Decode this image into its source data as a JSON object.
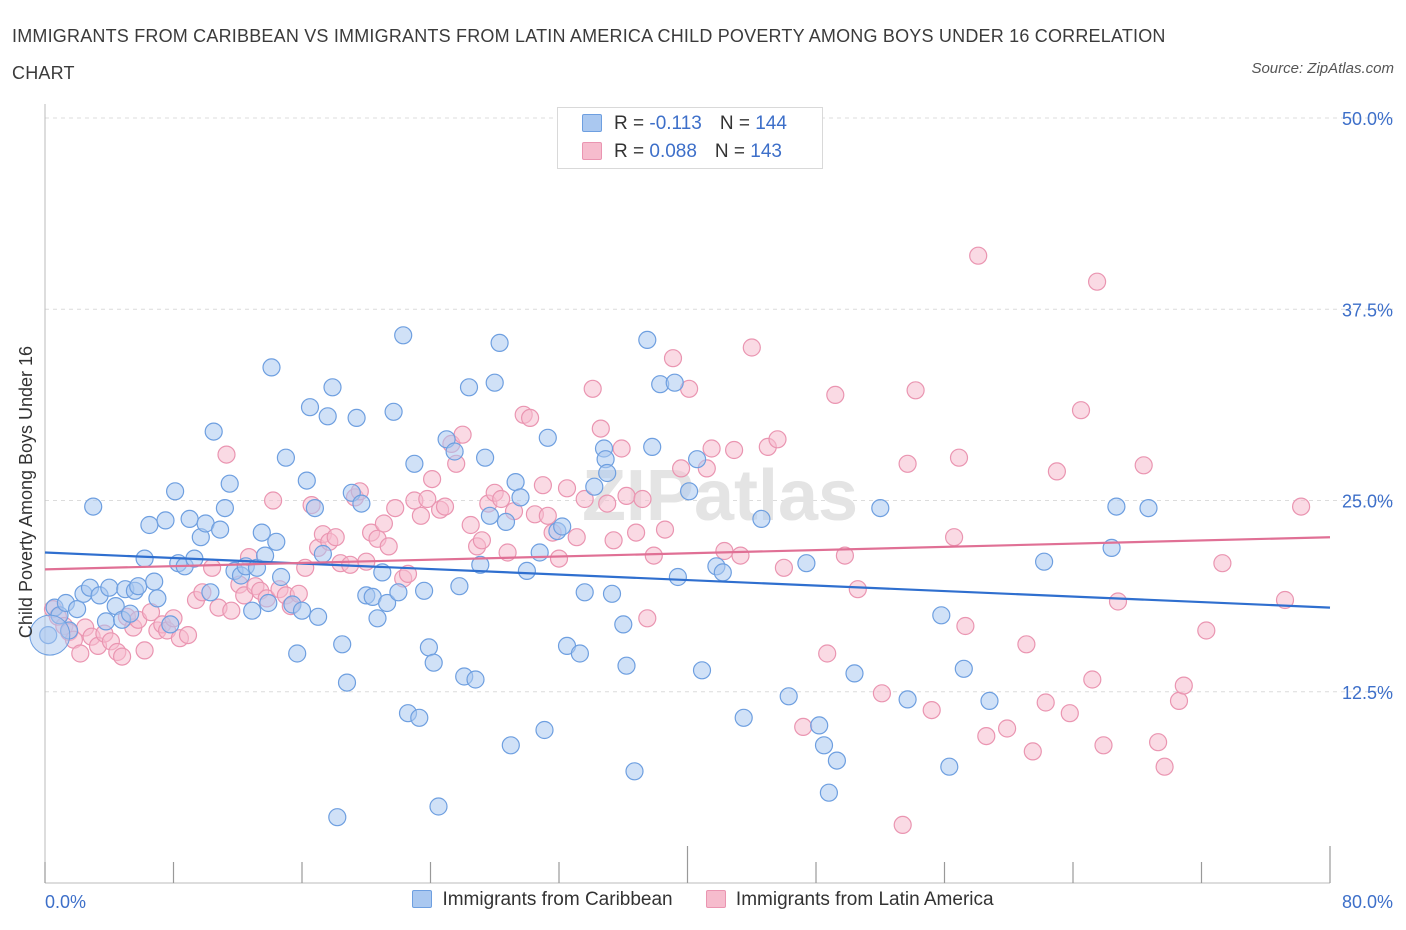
{
  "title": "IMMIGRANTS FROM CARIBBEAN VS IMMIGRANTS FROM LATIN AMERICA CHILD POVERTY AMONG BOYS UNDER 16 CORRELATION CHART",
  "source": "Source: ZipAtlas.com",
  "watermark": "ZIPatlas",
  "colors": {
    "blue_fill": "#aac8f0",
    "blue_stroke": "#6e9fe0",
    "blue_line": "#2f6fcf",
    "pink_fill": "#f6bccd",
    "pink_stroke": "#ea95b1",
    "pink_line": "#e07095",
    "tick_text": "#3d6fc9",
    "grid": "#dcdcdc"
  },
  "legend": {
    "rows": [
      {
        "r_label": "R = ",
        "r_value": "-0.113",
        "n_label": "N = ",
        "n_value": "144"
      },
      {
        "r_label": "R = ",
        "r_value": "0.088",
        "n_label": "N = ",
        "n_value": "143"
      }
    ]
  },
  "chart_data": {
    "type": "scatter",
    "title": "IMMIGRANTS FROM CARIBBEAN VS IMMIGRANTS FROM LATIN AMERICA CHILD POVERTY AMONG BOYS UNDER 16 CORRELATION CHART",
    "xlabel": "",
    "ylabel": "Child Poverty Among Boys Under 16",
    "xlim": [
      0,
      80
    ],
    "ylim": [
      0,
      50
    ],
    "x_tick_labels": [
      "0.0%",
      "80.0%"
    ],
    "y_ticks": [
      12.5,
      25.0,
      37.5,
      50.0
    ],
    "y_tick_labels": [
      "12.5%",
      "25.0%",
      "37.5%",
      "50.0%"
    ],
    "grid": true,
    "legend_placement": "top-center",
    "series": [
      {
        "name": "Immigrants from Caribbean",
        "color": "#aac8f0",
        "trend": {
          "x": [
            0,
            80
          ],
          "y": [
            21.6,
            18.0
          ]
        },
        "points": [
          [
            0.2,
            16.2
          ],
          [
            0.6,
            18.0
          ],
          [
            0.9,
            17.5
          ],
          [
            1.3,
            18.3
          ],
          [
            1.5,
            16.5
          ],
          [
            2.0,
            17.9
          ],
          [
            2.4,
            18.9
          ],
          [
            2.8,
            19.3
          ],
          [
            3.0,
            24.6
          ],
          [
            3.4,
            18.8
          ],
          [
            3.8,
            17.1
          ],
          [
            4.0,
            19.3
          ],
          [
            4.4,
            18.1
          ],
          [
            4.8,
            17.2
          ],
          [
            5.0,
            19.2
          ],
          [
            5.3,
            17.6
          ],
          [
            5.6,
            19.1
          ],
          [
            5.8,
            19.4
          ],
          [
            6.2,
            21.2
          ],
          [
            6.5,
            23.4
          ],
          [
            6.8,
            19.7
          ],
          [
            7.0,
            18.6
          ],
          [
            7.5,
            23.7
          ],
          [
            7.8,
            16.9
          ],
          [
            8.1,
            25.6
          ],
          [
            8.3,
            20.9
          ],
          [
            8.7,
            20.7
          ],
          [
            9.0,
            23.8
          ],
          [
            9.3,
            21.2
          ],
          [
            9.7,
            22.6
          ],
          [
            10.0,
            23.5
          ],
          [
            10.3,
            19.0
          ],
          [
            10.5,
            29.5
          ],
          [
            10.9,
            23.1
          ],
          [
            11.2,
            24.5
          ],
          [
            11.5,
            26.1
          ],
          [
            11.8,
            20.4
          ],
          [
            12.2,
            20.1
          ],
          [
            12.5,
            20.7
          ],
          [
            12.9,
            17.8
          ],
          [
            13.2,
            20.6
          ],
          [
            13.5,
            22.9
          ],
          [
            13.7,
            21.4
          ],
          [
            13.9,
            18.3
          ],
          [
            14.1,
            33.7
          ],
          [
            14.4,
            22.3
          ],
          [
            14.7,
            20.0
          ],
          [
            15.0,
            27.8
          ],
          [
            15.4,
            18.2
          ],
          [
            15.7,
            15.0
          ],
          [
            16.0,
            17.8
          ],
          [
            16.3,
            26.3
          ],
          [
            16.5,
            31.1
          ],
          [
            16.8,
            24.5
          ],
          [
            17.0,
            17.4
          ],
          [
            17.3,
            21.5
          ],
          [
            17.6,
            30.5
          ],
          [
            17.9,
            32.4
          ],
          [
            18.2,
            4.3
          ],
          [
            18.5,
            15.6
          ],
          [
            18.8,
            13.1
          ],
          [
            19.1,
            25.5
          ],
          [
            19.4,
            30.4
          ],
          [
            19.7,
            24.8
          ],
          [
            20.0,
            18.8
          ],
          [
            20.4,
            18.7
          ],
          [
            20.7,
            17.3
          ],
          [
            21.0,
            20.3
          ],
          [
            21.3,
            18.3
          ],
          [
            21.7,
            30.8
          ],
          [
            22.0,
            19.0
          ],
          [
            22.3,
            35.8
          ],
          [
            22.6,
            11.1
          ],
          [
            23.0,
            27.4
          ],
          [
            23.3,
            10.8
          ],
          [
            23.6,
            19.1
          ],
          [
            23.9,
            15.4
          ],
          [
            24.2,
            14.4
          ],
          [
            24.5,
            5.0
          ],
          [
            25.0,
            29.0
          ],
          [
            25.5,
            28.2
          ],
          [
            25.8,
            19.4
          ],
          [
            26.1,
            13.5
          ],
          [
            26.4,
            32.4
          ],
          [
            26.8,
            13.3
          ],
          [
            27.1,
            20.8
          ],
          [
            27.4,
            27.8
          ],
          [
            27.7,
            24.0
          ],
          [
            28.0,
            32.7
          ],
          [
            28.3,
            35.3
          ],
          [
            28.7,
            23.6
          ],
          [
            29.0,
            9.0
          ],
          [
            29.3,
            26.2
          ],
          [
            29.6,
            25.2
          ],
          [
            30.0,
            20.4
          ],
          [
            30.8,
            21.6
          ],
          [
            31.1,
            10.0
          ],
          [
            31.3,
            29.1
          ],
          [
            31.9,
            23.0
          ],
          [
            32.2,
            23.3
          ],
          [
            32.5,
            15.5
          ],
          [
            33.3,
            15.0
          ],
          [
            33.6,
            19.0
          ],
          [
            34.2,
            25.9
          ],
          [
            34.8,
            28.4
          ],
          [
            34.9,
            27.7
          ],
          [
            35.0,
            26.8
          ],
          [
            35.3,
            18.9
          ],
          [
            36.0,
            16.9
          ],
          [
            36.2,
            14.2
          ],
          [
            36.7,
            7.3
          ],
          [
            37.5,
            35.5
          ],
          [
            37.8,
            28.5
          ],
          [
            38.3,
            32.6
          ],
          [
            39.2,
            32.7
          ],
          [
            39.4,
            20.0
          ],
          [
            40.1,
            25.6
          ],
          [
            40.6,
            27.7
          ],
          [
            40.9,
            13.9
          ],
          [
            41.8,
            20.7
          ],
          [
            42.2,
            20.3
          ],
          [
            43.5,
            10.8
          ],
          [
            44.6,
            23.8
          ],
          [
            46.3,
            12.2
          ],
          [
            47.4,
            20.9
          ],
          [
            48.2,
            10.3
          ],
          [
            48.5,
            9.0
          ],
          [
            48.8,
            5.9
          ],
          [
            49.3,
            8.0
          ],
          [
            50.4,
            13.7
          ],
          [
            52.0,
            24.5
          ],
          [
            53.7,
            12.0
          ],
          [
            55.8,
            17.5
          ],
          [
            56.3,
            7.6
          ],
          [
            57.2,
            14.0
          ],
          [
            58.8,
            11.9
          ],
          [
            62.2,
            21.0
          ],
          [
            66.4,
            21.9
          ],
          [
            66.7,
            24.6
          ],
          [
            68.7,
            24.5
          ]
        ]
      },
      {
        "name": "Immigrants from Latin America",
        "color": "#f6bccd",
        "trend": {
          "x": [
            0,
            80
          ],
          "y": [
            20.5,
            22.6
          ]
        },
        "points": [
          [
            0.5,
            17.9
          ],
          [
            0.8,
            17.4
          ],
          [
            1.2,
            16.8
          ],
          [
            1.5,
            16.4
          ],
          [
            1.8,
            15.9
          ],
          [
            2.2,
            15.0
          ],
          [
            2.5,
            16.7
          ],
          [
            2.9,
            16.1
          ],
          [
            3.3,
            15.5
          ],
          [
            3.7,
            16.3
          ],
          [
            4.1,
            15.8
          ],
          [
            4.5,
            15.1
          ],
          [
            4.8,
            14.8
          ],
          [
            5.1,
            17.4
          ],
          [
            5.5,
            16.7
          ],
          [
            5.8,
            17.2
          ],
          [
            6.2,
            15.2
          ],
          [
            6.6,
            17.7
          ],
          [
            7.0,
            16.5
          ],
          [
            7.3,
            16.9
          ],
          [
            7.6,
            16.5
          ],
          [
            8.0,
            17.3
          ],
          [
            8.4,
            16.0
          ],
          [
            8.9,
            16.2
          ],
          [
            9.4,
            18.5
          ],
          [
            9.8,
            19.0
          ],
          [
            10.4,
            20.6
          ],
          [
            10.8,
            18.0
          ],
          [
            11.3,
            28.0
          ],
          [
            11.6,
            17.8
          ],
          [
            12.1,
            19.5
          ],
          [
            12.4,
            18.8
          ],
          [
            12.7,
            21.3
          ],
          [
            13.1,
            19.4
          ],
          [
            13.4,
            19.1
          ],
          [
            13.8,
            18.6
          ],
          [
            14.2,
            25.0
          ],
          [
            14.6,
            19.2
          ],
          [
            15.0,
            18.8
          ],
          [
            15.3,
            18.1
          ],
          [
            15.8,
            18.9
          ],
          [
            16.2,
            20.6
          ],
          [
            16.6,
            24.7
          ],
          [
            17.0,
            21.9
          ],
          [
            17.3,
            22.8
          ],
          [
            17.7,
            22.3
          ],
          [
            18.1,
            22.6
          ],
          [
            18.4,
            20.9
          ],
          [
            19.0,
            20.8
          ],
          [
            19.3,
            25.2
          ],
          [
            19.6,
            25.6
          ],
          [
            20.0,
            21.0
          ],
          [
            20.3,
            22.9
          ],
          [
            20.7,
            22.5
          ],
          [
            21.1,
            23.5
          ],
          [
            21.4,
            22.0
          ],
          [
            21.8,
            24.5
          ],
          [
            22.3,
            19.9
          ],
          [
            22.6,
            20.2
          ],
          [
            23.0,
            25.0
          ],
          [
            23.4,
            24.0
          ],
          [
            23.8,
            25.1
          ],
          [
            24.1,
            26.4
          ],
          [
            24.6,
            24.4
          ],
          [
            24.9,
            24.6
          ],
          [
            25.3,
            28.7
          ],
          [
            25.6,
            27.4
          ],
          [
            26.0,
            29.3
          ],
          [
            26.5,
            23.4
          ],
          [
            26.9,
            22.0
          ],
          [
            27.2,
            22.4
          ],
          [
            27.6,
            24.8
          ],
          [
            28.0,
            25.5
          ],
          [
            28.4,
            25.1
          ],
          [
            28.8,
            21.6
          ],
          [
            29.2,
            24.3
          ],
          [
            29.8,
            30.6
          ],
          [
            30.2,
            30.4
          ],
          [
            30.5,
            24.1
          ],
          [
            31.0,
            26.0
          ],
          [
            31.3,
            24.0
          ],
          [
            31.6,
            22.9
          ],
          [
            32.0,
            21.2
          ],
          [
            32.5,
            25.8
          ],
          [
            33.1,
            22.6
          ],
          [
            33.6,
            25.1
          ],
          [
            34.1,
            32.3
          ],
          [
            34.6,
            29.7
          ],
          [
            35.0,
            24.8
          ],
          [
            35.4,
            22.4
          ],
          [
            35.9,
            28.4
          ],
          [
            36.2,
            25.3
          ],
          [
            36.8,
            22.9
          ],
          [
            37.2,
            25.1
          ],
          [
            37.5,
            17.3
          ],
          [
            37.9,
            21.4
          ],
          [
            38.6,
            23.1
          ],
          [
            39.1,
            34.3
          ],
          [
            39.6,
            27.1
          ],
          [
            40.1,
            32.3
          ],
          [
            41.2,
            27.1
          ],
          [
            41.5,
            28.4
          ],
          [
            42.3,
            21.7
          ],
          [
            42.9,
            28.3
          ],
          [
            43.3,
            21.4
          ],
          [
            44.0,
            35.0
          ],
          [
            45.0,
            28.5
          ],
          [
            45.6,
            29.0
          ],
          [
            46.0,
            20.6
          ],
          [
            47.2,
            10.2
          ],
          [
            48.7,
            15.0
          ],
          [
            49.2,
            31.9
          ],
          [
            49.8,
            21.4
          ],
          [
            50.6,
            19.2
          ],
          [
            52.1,
            12.4
          ],
          [
            53.4,
            3.8
          ],
          [
            53.7,
            27.4
          ],
          [
            54.2,
            32.2
          ],
          [
            55.2,
            11.3
          ],
          [
            56.6,
            22.6
          ],
          [
            56.9,
            27.8
          ],
          [
            57.3,
            16.8
          ],
          [
            58.1,
            41.0
          ],
          [
            58.6,
            9.6
          ],
          [
            59.9,
            10.1
          ],
          [
            61.1,
            15.6
          ],
          [
            61.5,
            8.6
          ],
          [
            62.3,
            11.8
          ],
          [
            63.0,
            26.9
          ],
          [
            63.8,
            11.1
          ],
          [
            64.5,
            30.9
          ],
          [
            65.2,
            13.3
          ],
          [
            65.5,
            39.3
          ],
          [
            65.9,
            9.0
          ],
          [
            66.8,
            18.4
          ],
          [
            68.4,
            27.3
          ],
          [
            69.3,
            9.2
          ],
          [
            69.7,
            7.6
          ],
          [
            70.6,
            11.9
          ],
          [
            70.9,
            12.9
          ],
          [
            72.3,
            16.5
          ],
          [
            73.3,
            20.9
          ],
          [
            77.2,
            18.5
          ],
          [
            78.2,
            24.6
          ]
        ]
      }
    ]
  },
  "bottom_legend": {
    "items": [
      "Immigrants from Caribbean",
      "Immigrants from Latin America"
    ]
  }
}
